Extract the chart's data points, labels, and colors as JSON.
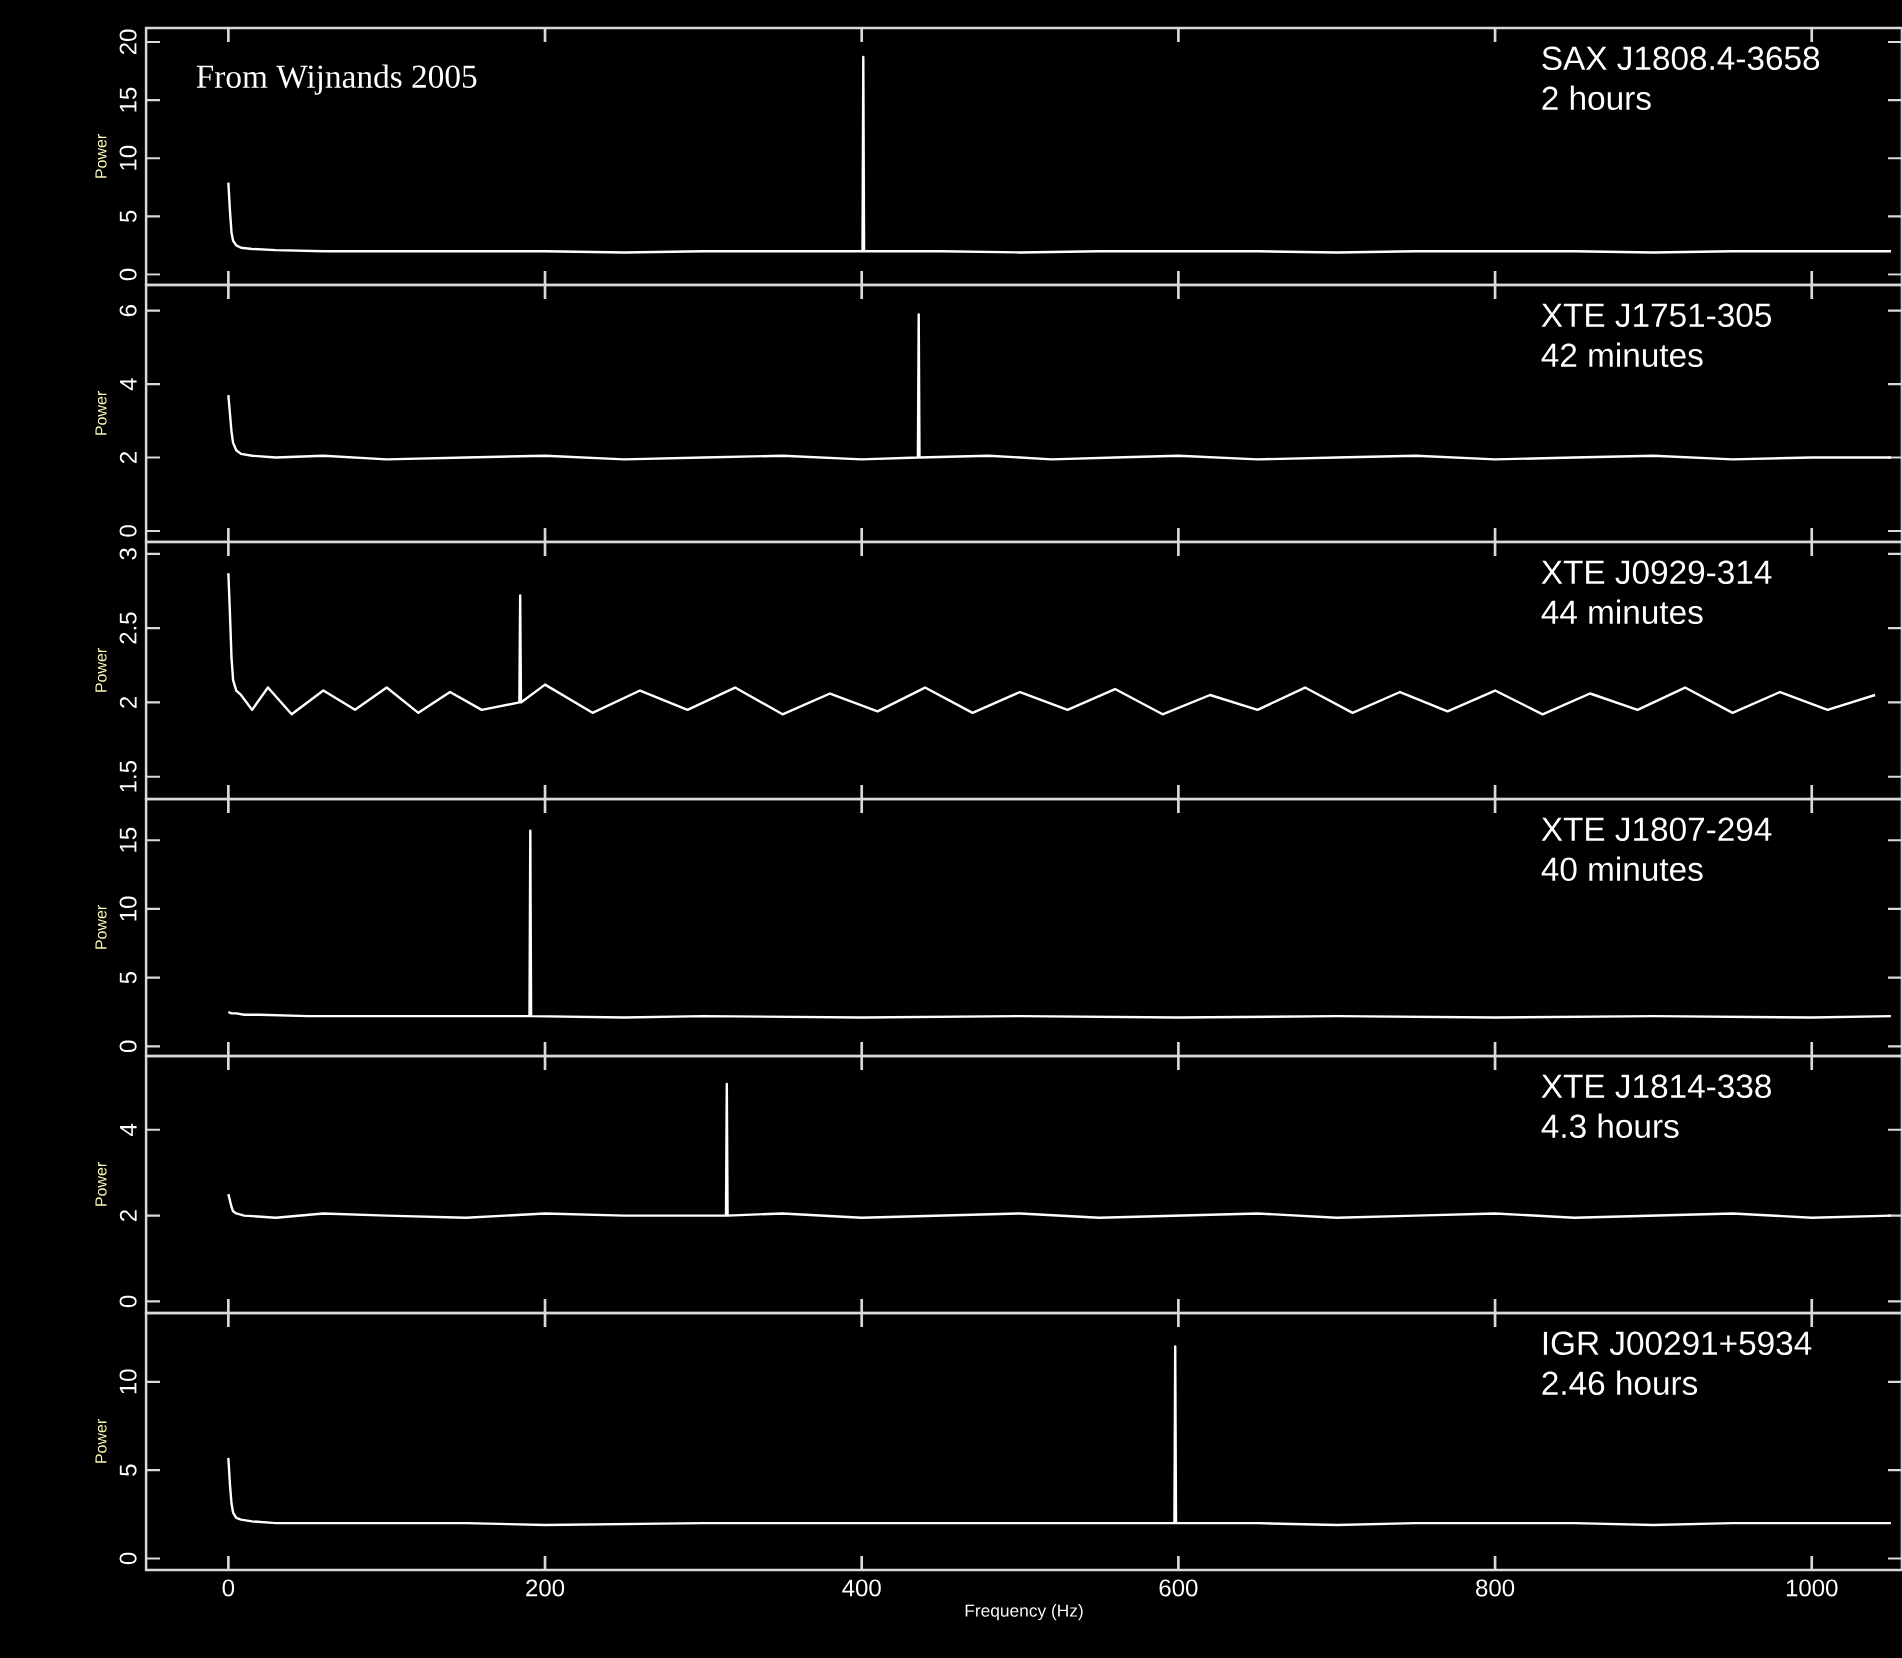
{
  "chart_data": [
    {
      "type": "line",
      "title": "SAX J1808.4-3658",
      "subtitle": "2 hours",
      "ylabel": "Power",
      "annotations": [
        "From Wijnands 2005"
      ],
      "xlim": [
        -52,
        1057
      ],
      "ylim": [
        -0.9,
        21.2
      ],
      "xticks": [
        0,
        200,
        400,
        600,
        800,
        1000
      ],
      "yticks": [
        0,
        5,
        10,
        15,
        20
      ],
      "tick_labels": "y",
      "series": [
        {
          "color": "#ffffff",
          "x": [
            0,
            1,
            2,
            3,
            5,
            8,
            15,
            30,
            60,
            100,
            150,
            200,
            250,
            300,
            350,
            400.5,
            401,
            401.5,
            450,
            500,
            550,
            600,
            650,
            700,
            750,
            800,
            850,
            900,
            950,
            1000,
            1050
          ],
          "values": [
            7.9,
            5.5,
            3.6,
            2.9,
            2.5,
            2.3,
            2.2,
            2.1,
            2.0,
            2.0,
            2.0,
            2.0,
            1.9,
            2.0,
            2.0,
            2.0,
            18.7,
            2.0,
            2.0,
            1.9,
            2.0,
            2.0,
            2.0,
            1.9,
            2.0,
            2.0,
            2.0,
            1.9,
            2.0,
            2.0,
            2.0
          ]
        }
      ]
    },
    {
      "type": "line",
      "title": "XTE J1751-305",
      "subtitle": "42 minutes",
      "ylabel": "Power",
      "xlim": [
        -52,
        1057
      ],
      "ylim": [
        -0.3,
        6.7
      ],
      "xticks": [
        0,
        200,
        400,
        600,
        800,
        1000
      ],
      "yticks": [
        0,
        2,
        4,
        6
      ],
      "tick_labels": "y",
      "series": [
        {
          "color": "#ffffff",
          "x": [
            0,
            1,
            2,
            3,
            5,
            8,
            15,
            30,
            60,
            100,
            150,
            200,
            250,
            300,
            350,
            400,
            435.5,
            436,
            436.5,
            480,
            520,
            560,
            600,
            650,
            700,
            750,
            800,
            850,
            900,
            950,
            1000,
            1050
          ],
          "values": [
            3.7,
            3.2,
            2.7,
            2.4,
            2.2,
            2.1,
            2.05,
            2.0,
            2.05,
            1.95,
            2.0,
            2.05,
            1.95,
            2.0,
            2.05,
            1.95,
            2.0,
            5.9,
            2.0,
            2.05,
            1.95,
            2.0,
            2.05,
            1.95,
            2.0,
            2.05,
            1.95,
            2.0,
            2.05,
            1.95,
            2.0,
            2.0
          ]
        }
      ]
    },
    {
      "type": "line",
      "title": "XTE J0929-314",
      "subtitle": "44 minutes",
      "ylabel": "Power",
      "xlim": [
        -52,
        1057
      ],
      "ylim": [
        1.35,
        3.08
      ],
      "xticks": [
        0,
        200,
        400,
        600,
        800,
        1000
      ],
      "yticks": [
        1.5,
        2,
        2.5,
        3
      ],
      "tick_labels": "y",
      "series": [
        {
          "color": "#ffffff",
          "x": [
            0,
            1,
            2,
            3,
            5,
            8,
            15,
            25,
            40,
            60,
            80,
            100,
            120,
            140,
            160,
            183.8,
            184.3,
            184.8,
            200,
            230,
            260,
            290,
            320,
            350,
            380,
            410,
            440,
            470,
            500,
            530,
            560,
            590,
            620,
            650,
            680,
            710,
            740,
            770,
            800,
            830,
            860,
            890,
            920,
            950,
            980,
            1010,
            1040
          ],
          "values": [
            2.87,
            2.6,
            2.3,
            2.15,
            2.08,
            2.05,
            1.95,
            2.1,
            1.92,
            2.08,
            1.95,
            2.1,
            1.93,
            2.07,
            1.95,
            2.0,
            2.72,
            2.0,
            2.12,
            1.93,
            2.08,
            1.95,
            2.1,
            1.92,
            2.06,
            1.94,
            2.1,
            1.93,
            2.07,
            1.95,
            2.09,
            1.92,
            2.05,
            1.95,
            2.1,
            1.93,
            2.07,
            1.94,
            2.08,
            1.92,
            2.06,
            1.95,
            2.1,
            1.93,
            2.07,
            1.95,
            2.05
          ]
        }
      ]
    },
    {
      "type": "line",
      "title": "XTE J1807-294",
      "subtitle": "40 minutes",
      "ylabel": "Power",
      "xlim": [
        -52,
        1057
      ],
      "ylim": [
        -0.7,
        18.0
      ],
      "xticks": [
        0,
        200,
        400,
        600,
        800,
        1000
      ],
      "yticks": [
        0,
        5,
        10,
        15
      ],
      "tick_labels": "y",
      "series": [
        {
          "color": "#ffffff",
          "x": [
            0,
            2,
            5,
            10,
            20,
            50,
            100,
            150,
            190.2,
            190.7,
            191.2,
            250,
            300,
            400,
            500,
            600,
            700,
            800,
            900,
            1000,
            1050
          ],
          "values": [
            2.5,
            2.4,
            2.4,
            2.3,
            2.3,
            2.2,
            2.2,
            2.2,
            2.2,
            15.7,
            2.2,
            2.1,
            2.2,
            2.1,
            2.2,
            2.1,
            2.2,
            2.1,
            2.2,
            2.1,
            2.2
          ]
        }
      ]
    },
    {
      "type": "line",
      "title": "XTE J1814-338",
      "subtitle": "4.3 hours",
      "ylabel": "Power",
      "xlim": [
        -52,
        1057
      ],
      "ylim": [
        -0.27,
        5.72
      ],
      "xticks": [
        0,
        200,
        400,
        600,
        800,
        1000
      ],
      "yticks": [
        0,
        2,
        4
      ],
      "tick_labels": "y",
      "series": [
        {
          "color": "#ffffff",
          "x": [
            0,
            1,
            2,
            3,
            5,
            10,
            30,
            60,
            100,
            150,
            200,
            250,
            314.3,
            314.8,
            315.3,
            350,
            400,
            450,
            500,
            550,
            600,
            650,
            700,
            750,
            800,
            850,
            900,
            950,
            1000,
            1050
          ],
          "values": [
            2.5,
            2.35,
            2.2,
            2.1,
            2.05,
            2.0,
            1.95,
            2.05,
            2.0,
            1.95,
            2.05,
            2.0,
            2.0,
            5.07,
            2.0,
            2.05,
            1.95,
            2.0,
            2.05,
            1.95,
            2.0,
            2.05,
            1.95,
            2.0,
            2.05,
            1.95,
            2.0,
            2.05,
            1.95,
            2.0
          ]
        }
      ]
    },
    {
      "type": "line",
      "title": "IGR J00291+5934",
      "subtitle": "2.46 hours",
      "ylabel": "Power",
      "xlabel": "Frequency (Hz)",
      "xlim": [
        -52,
        1057
      ],
      "ylim": [
        -0.65,
        13.9
      ],
      "xticks": [
        0,
        200,
        400,
        600,
        800,
        1000
      ],
      "yticks": [
        0,
        5,
        10
      ],
      "series": [
        {
          "color": "#ffffff",
          "x": [
            0,
            1,
            2,
            3,
            5,
            8,
            15,
            30,
            60,
            100,
            150,
            200,
            300,
            400,
            500,
            597.5,
            598,
            598.5,
            650,
            700,
            750,
            800,
            850,
            900,
            950,
            1000,
            1050
          ],
          "values": [
            5.7,
            4.2,
            3.1,
            2.6,
            2.3,
            2.2,
            2.1,
            2.0,
            2.0,
            2.0,
            2.0,
            1.9,
            2.0,
            2.0,
            2.0,
            2.0,
            12.0,
            2.0,
            2.0,
            1.9,
            2.0,
            2.0,
            2.0,
            1.9,
            2.0,
            2.0,
            2.0
          ]
        }
      ]
    }
  ]
}
